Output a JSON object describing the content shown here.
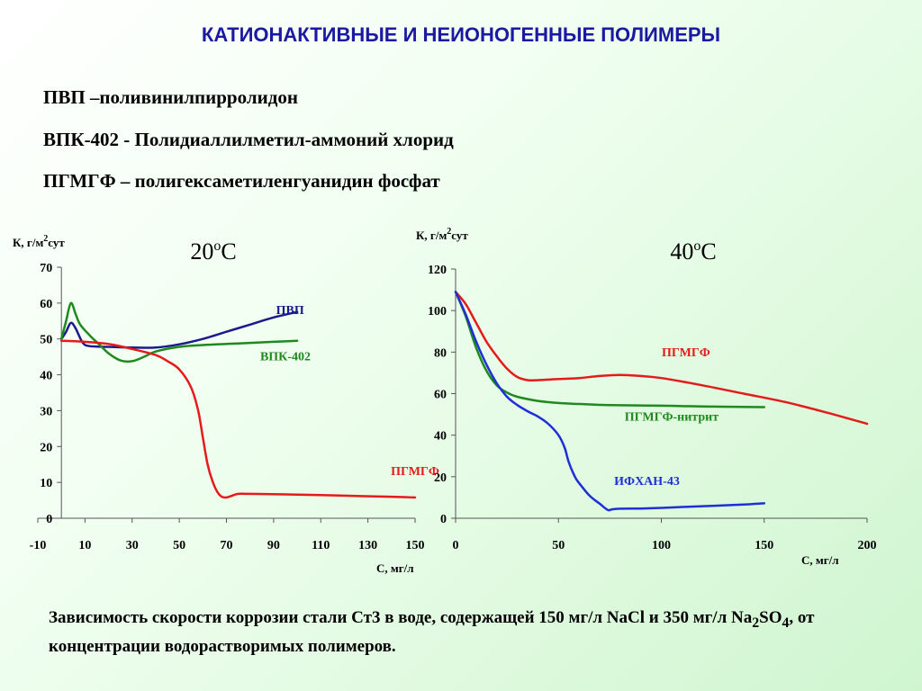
{
  "title": "КАТИОНАКТИВНЫЕ И НЕИОНОГЕННЫЕ ПОЛИМЕРЫ",
  "definitions": [
    "ПВП –поливинилпирролидон",
    "ВПК-402 - Полидиаллилметил-аммоний хлорид",
    "ПГМГФ – полигексаметиленгуанидин фосфат"
  ],
  "caption": {
    "part1": "Зависимость скорости коррозии стали Ст3 в воде, содержащей 150 мг/л NaCl и 350 мг/л Na",
    "sub1": "2",
    "part2": "SO",
    "sub2": "4",
    "part3": ", от концентрации водорастворимых полимеров."
  },
  "chart_data": [
    {
      "type": "line",
      "title": "20oC",
      "title_main": "20",
      "title_sup": "o",
      "title_tail": "C",
      "ylabel": "К, г/м2сут",
      "ylabel_pre": "К, г/м",
      "ylabel_sup": "2",
      "ylabel_post": "сут",
      "xlabel": "С, мг/л",
      "xlim": [
        -10,
        150
      ],
      "ylim": [
        0,
        70
      ],
      "x_ticks": [
        -10,
        10,
        30,
        50,
        70,
        90,
        110,
        130,
        150
      ],
      "y_ticks": [
        0,
        10,
        20,
        30,
        40,
        50,
        60,
        70
      ],
      "grid": false,
      "series": [
        {
          "name": "ПВП",
          "color": "#1a1a8c",
          "label_x": 97,
          "label_y": 57,
          "x": [
            0,
            2,
            4,
            6,
            9,
            12,
            20,
            30,
            40,
            50,
            60,
            70,
            80,
            90,
            100
          ],
          "y": [
            50,
            52,
            54.5,
            53,
            49,
            48,
            47.8,
            47.6,
            47.6,
            48.5,
            50,
            52,
            54,
            56,
            57.5
          ]
        },
        {
          "name": "ВПК-402",
          "color": "#1e8a1e",
          "label_x": 95,
          "label_y": 44,
          "x": [
            0,
            2,
            4,
            6,
            8,
            12,
            16,
            20,
            25,
            30,
            35,
            40,
            50,
            60,
            70,
            80,
            90,
            100
          ],
          "y": [
            50,
            55,
            60,
            57,
            54,
            51,
            48.5,
            46,
            44,
            43.8,
            45,
            46.5,
            47.8,
            48.3,
            48.6,
            48.9,
            49.2,
            49.5
          ]
        },
        {
          "name": "ПГМГФ",
          "color": "#e51b1b",
          "label_x": 150,
          "label_y": 12,
          "x": [
            0,
            10,
            20,
            30,
            40,
            45,
            50,
            55,
            58,
            60,
            62,
            64,
            66,
            68,
            70,
            72,
            75,
            80,
            100,
            120,
            140,
            150
          ],
          "y": [
            49.5,
            49.2,
            48.6,
            47.2,
            45.5,
            43.8,
            41.5,
            36.5,
            30,
            22.5,
            15,
            10.5,
            7.5,
            6,
            5.8,
            6.2,
            6.8,
            6.8,
            6.6,
            6.3,
            6,
            5.8
          ]
        }
      ]
    },
    {
      "type": "line",
      "title": "40oC",
      "title_main": "40",
      "title_sup": "o",
      "title_tail": "C",
      "ylabel": "К, г/м2сут",
      "ylabel_pre": "К, г/м",
      "ylabel_sup": "2",
      "ylabel_post": "сут",
      "xlabel": "С, мг/л",
      "xlim": [
        0,
        200
      ],
      "ylim": [
        0,
        120
      ],
      "x_ticks": [
        0,
        50,
        100,
        150,
        200
      ],
      "y_ticks": [
        0,
        20,
        40,
        60,
        80,
        100,
        120
      ],
      "grid": false,
      "series": [
        {
          "name": "ПГМГФ",
          "color": "#e51b1b",
          "label_x": 112,
          "label_y": 78,
          "x": [
            0,
            5,
            10,
            15,
            20,
            25,
            30,
            35,
            40,
            50,
            60,
            70,
            80,
            90,
            100,
            120,
            140,
            160,
            180,
            200
          ],
          "y": [
            109,
            103,
            94,
            85,
            78,
            72,
            68,
            66.5,
            66.5,
            67,
            67.5,
            68.5,
            69,
            68.5,
            67.5,
            64,
            60,
            56,
            51,
            45.5
          ]
        },
        {
          "name": "ПГМГФ-нитрит",
          "color": "#1e8a1e",
          "label_x": 105,
          "label_y": 47,
          "x": [
            0,
            5,
            10,
            15,
            20,
            25,
            30,
            40,
            50,
            60,
            70,
            80,
            100,
            120,
            150
          ],
          "y": [
            109,
            97,
            82,
            71,
            64,
            60.5,
            58.5,
            56.5,
            55.5,
            55,
            54.6,
            54.4,
            54.2,
            53.8,
            53.5
          ]
        },
        {
          "name": "ИФХАН-43",
          "color": "#1f2fd8",
          "label_x": 93,
          "label_y": 16,
          "x": [
            0,
            5,
            10,
            15,
            20,
            25,
            30,
            35,
            40,
            45,
            50,
            53,
            55,
            58,
            60,
            65,
            70,
            74,
            76,
            80,
            90,
            100,
            120,
            140,
            150
          ],
          "y": [
            109,
            98,
            85,
            74,
            65,
            58.5,
            54.5,
            51.5,
            49,
            45.5,
            40,
            34,
            27,
            20,
            17,
            11,
            7,
            4,
            4.3,
            4.6,
            4.7,
            5,
            5.8,
            6.6,
            7.2
          ]
        }
      ]
    }
  ]
}
